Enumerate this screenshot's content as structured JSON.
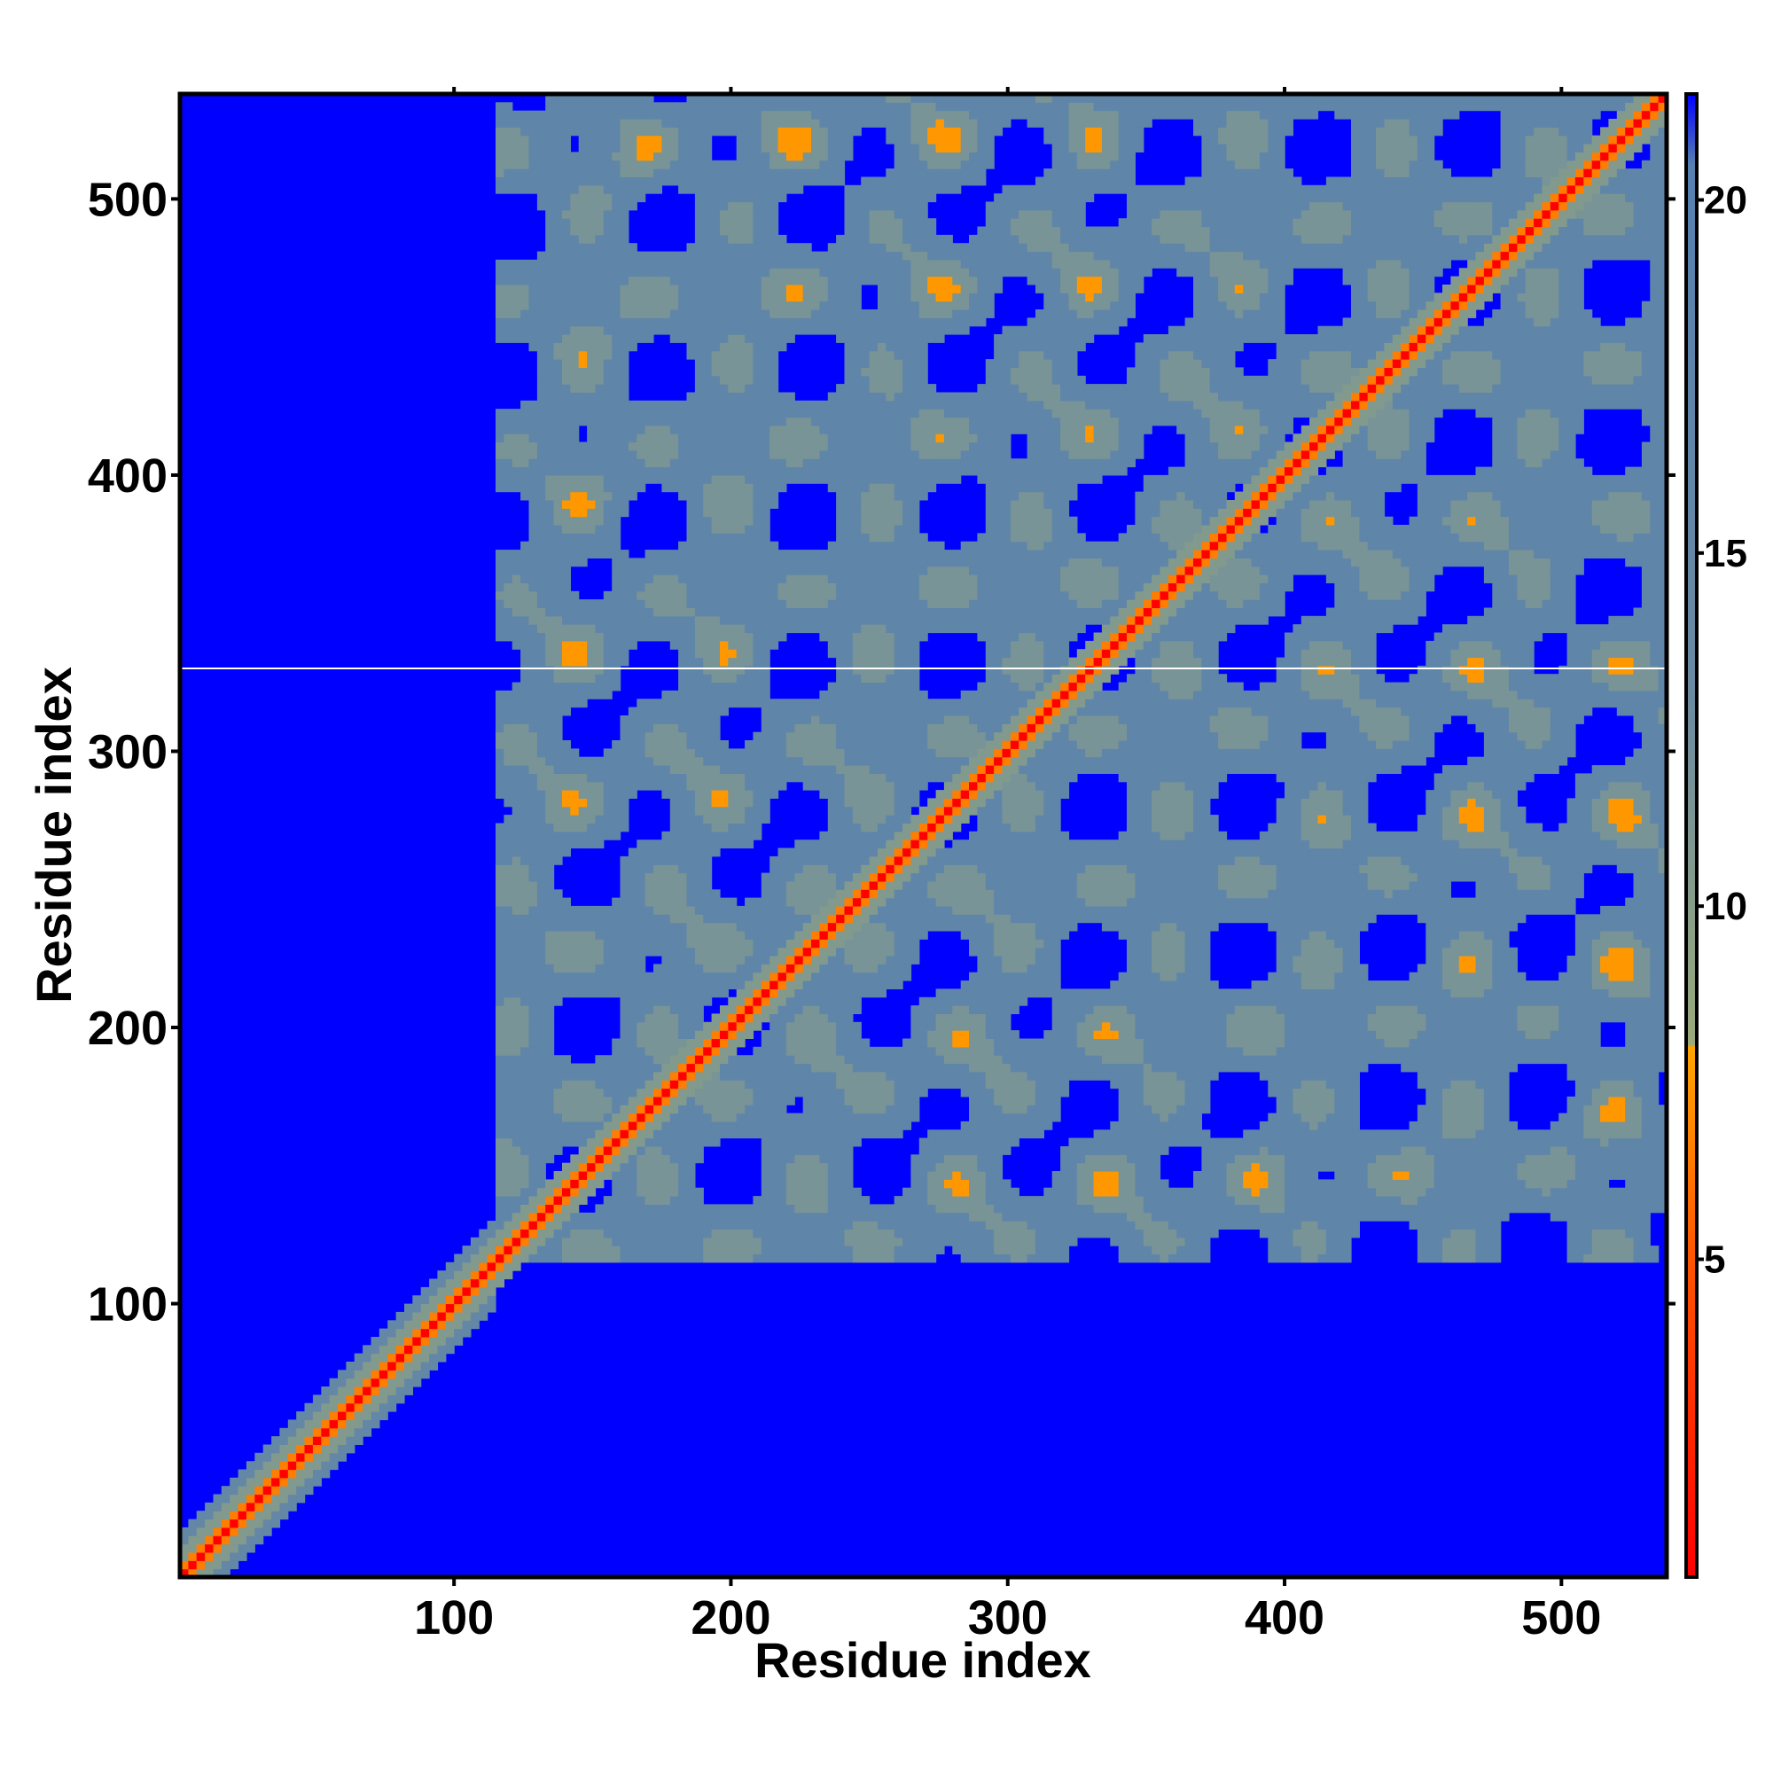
{
  "chart_data": {
    "type": "heatmap",
    "title": "",
    "xlabel": "Residue index",
    "ylabel": "Residue index",
    "xlim": [
      1,
      538
    ],
    "ylim": [
      1,
      538
    ],
    "x_ticks": [
      100,
      200,
      300,
      400,
      500
    ],
    "y_ticks": [
      100,
      200,
      300,
      400,
      500
    ],
    "colorbar": {
      "ticks": [
        5,
        10,
        15,
        20
      ],
      "range": [
        0.5,
        21.5
      ],
      "stops": [
        {
          "value": 0.5,
          "color": "#ff0000"
        },
        {
          "value": 5,
          "color": "#ff5500"
        },
        {
          "value": 8,
          "color": "#ffa500"
        },
        {
          "value": 8.05,
          "color": "#9aaa7a"
        },
        {
          "value": 13,
          "color": "#6a8aa2"
        },
        {
          "value": 20.5,
          "color": "#5580b0"
        },
        {
          "value": 21.5,
          "color": "#0000ff"
        }
      ]
    },
    "background_value": 21.5,
    "features": {
      "diagonal_value": 0.5,
      "folded_region": {
        "start": 115,
        "end": 538
      },
      "unfolded_segment": {
        "start": 1,
        "end": 115
      },
      "missing_row": 330
    }
  }
}
